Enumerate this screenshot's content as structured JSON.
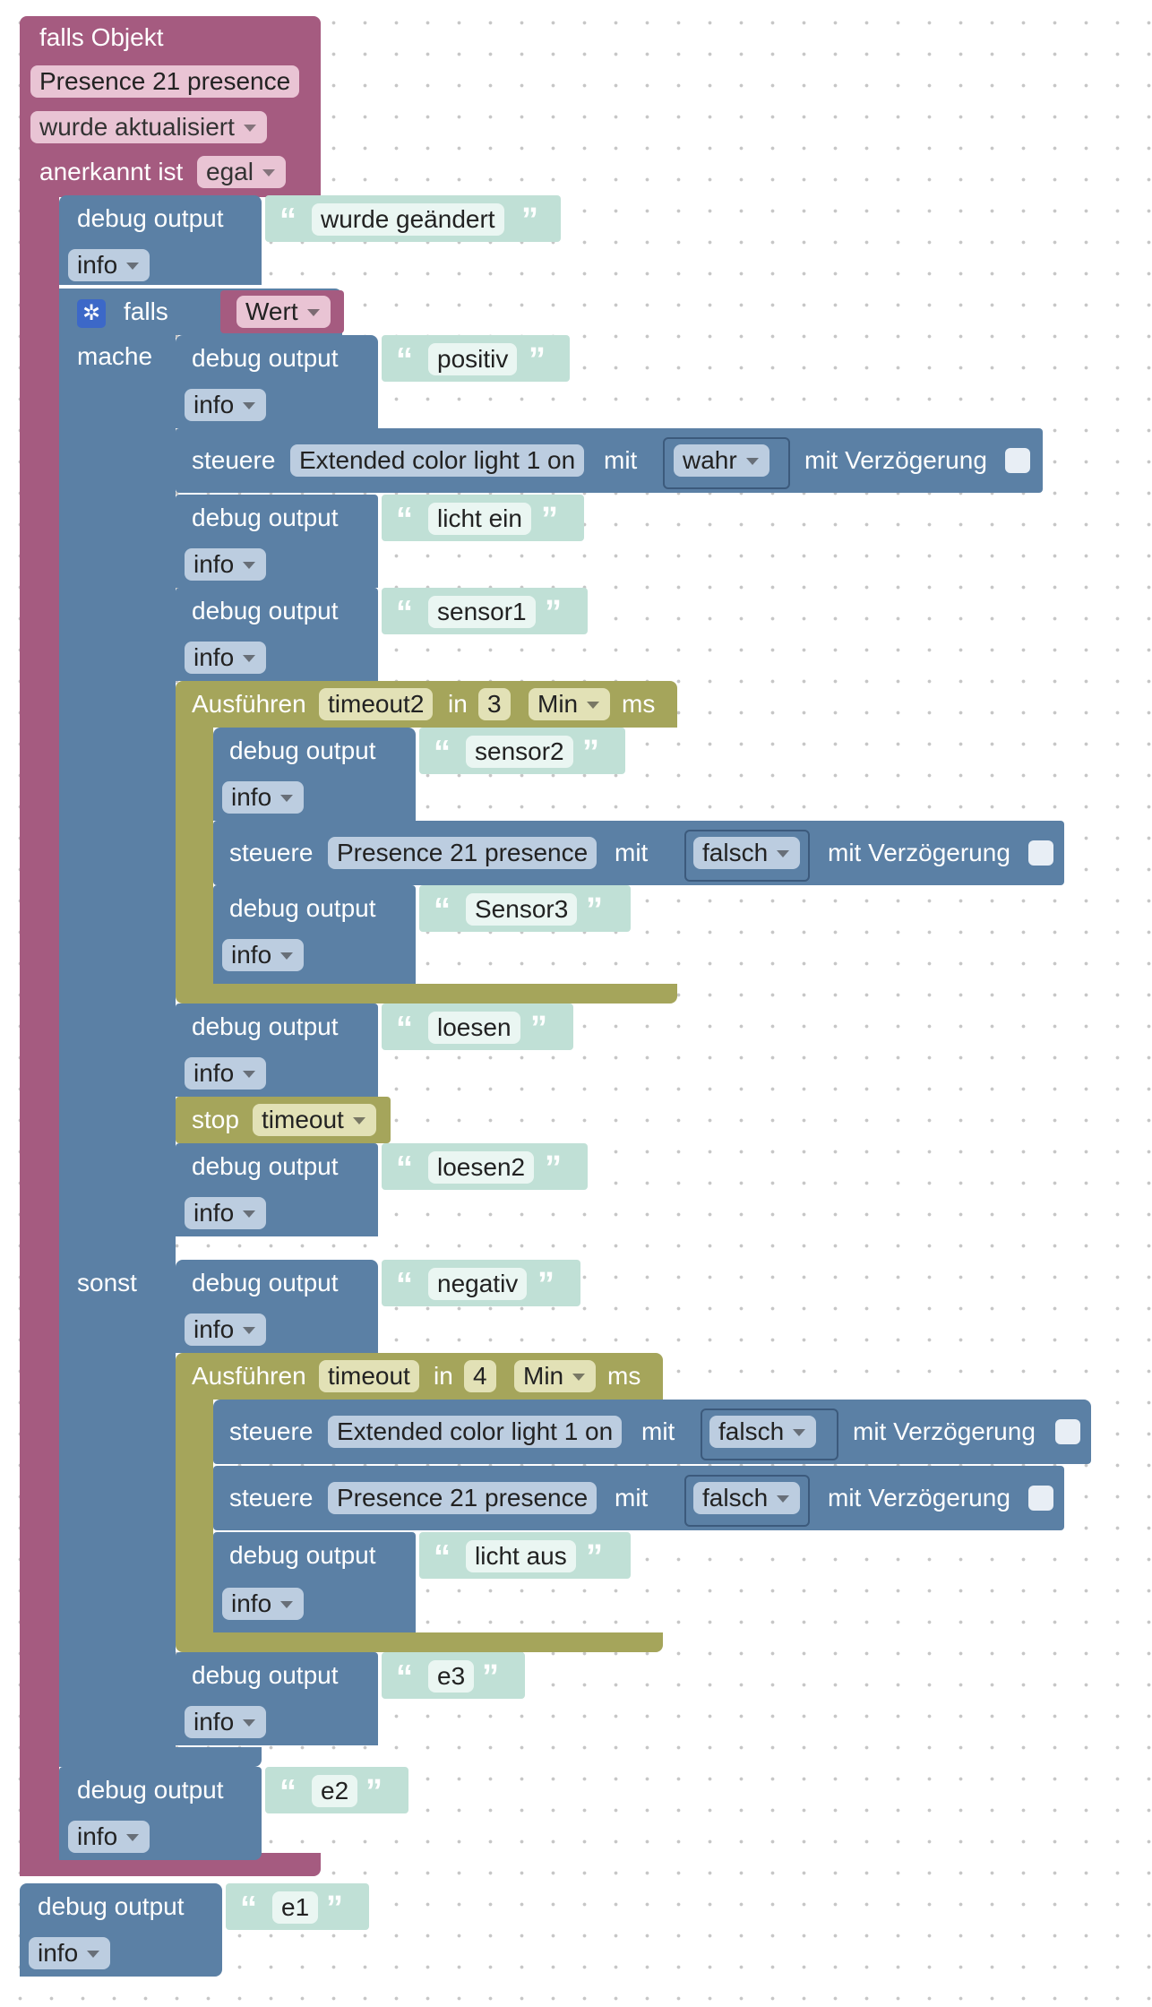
{
  "event": {
    "header": "falls Objekt",
    "object": "Presence 21 presence",
    "trigger": "wurde aktualisiert",
    "ack_label": "anerkannt ist",
    "ack_value": "egal"
  },
  "labels": {
    "debug_output": "debug output",
    "log_level": "info",
    "if": "falls",
    "do": "mache",
    "else": "sonst",
    "control": "steuere",
    "with": "mit",
    "delay": "mit Verzögerung",
    "run": "Ausführen",
    "in": "in",
    "ms": "ms",
    "stop": "stop",
    "quote_open": "“",
    "quote_close": "”"
  },
  "condition": "Wert",
  "debug_texts": {
    "changed": "wurde geändert",
    "positiv": "positiv",
    "licht_ein": "licht ein",
    "sensor1": "sensor1",
    "sensor2": "sensor2",
    "sensor3": "Sensor3",
    "loesen": "loesen",
    "loesen2": "loesen2",
    "negativ": "negativ",
    "licht_aus": "licht aus",
    "e3": "e3",
    "e2": "e2",
    "e1": "e1"
  },
  "controls": {
    "light_on_object": "Extended color light 1 on",
    "light_on_value": "wahr",
    "presence_reset_object": "Presence 21 presence",
    "presence_reset_value": "falsch",
    "light_off_object": "Extended color light 1 on",
    "light_off_value": "falsch",
    "presence_off_object": "Presence 21 presence",
    "presence_off_value": "falsch"
  },
  "timeouts": {
    "first_name": "timeout2",
    "first_value": "3",
    "first_unit": "Min",
    "second_name": "timeout",
    "second_value": "4",
    "second_unit": "Min",
    "stop_name": "timeout"
  },
  "colors": {
    "event": "#a55b80",
    "logic": "#5b80a5",
    "timer": "#a5a55b",
    "text": "#c0e0d6"
  }
}
